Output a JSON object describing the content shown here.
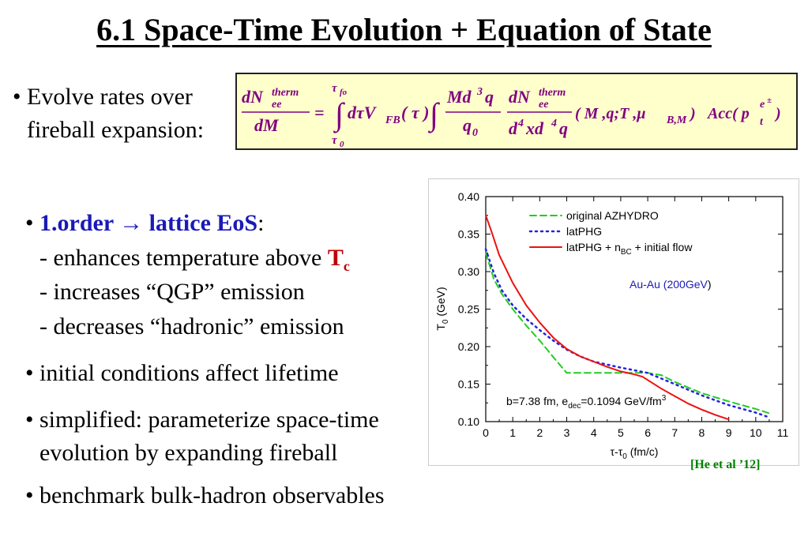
{
  "slide": {
    "title": "6.1 Space-Time Evolution + Equation of State",
    "intro_line1": "• Evolve rates over",
    "intro_line2": "fireball expansion:",
    "b1_prefix": "• ",
    "b1_bold": "1.order → lattice EoS",
    "b1_colon": ":",
    "b1_sub1": "- enhances temperature above ",
    "b1_tc": "T",
    "b1_tc_sub": "c",
    "b1_sub2": "- increases “QGP” emission",
    "b1_sub3": "- decreases “hadronic” emission",
    "b2": "• initial conditions affect lifetime",
    "b3_line1": "• simplified: parameterize space-time",
    "b3_line2": "evolution by expanding fireball",
    "b4": "• benchmark bulk-hadron observables",
    "reference": "[He et al ’12]"
  },
  "equation": {
    "lhs_num": "dN",
    "lhs_sup": "therm",
    "lhs_sub": "ee",
    "lhs_den": "dM",
    "equals": "=",
    "upper_limit": "τ",
    "upper_limit_sub": "fo",
    "lower_limit": "τ",
    "lower_limit_sub": "0",
    "integrand": "dτV",
    "integrand_sub": "FB",
    "integrand_arg": "( τ )",
    "frac2_num": "Md",
    "frac2_num_sup": "3",
    "frac2_num_end": "q",
    "frac2_den": "q",
    "frac2_den_sub": "0",
    "frac3_num": "dN",
    "frac3_sup": "therm",
    "frac3_sub": "ee",
    "frac3_den_a": "d",
    "frac3_den_a_sup": "4",
    "frac3_den_b": "xd",
    "frac3_den_b_sup": "4",
    "frac3_den_c": "q",
    "args_start": "( M ,q;T ,μ",
    "args_sub": "B,M",
    "args_end": " )",
    "acc": "Acc( p",
    "acc_sub": "t",
    "acc_sup": "e",
    "acc_sup_pm": "±",
    "acc_end": " )"
  },
  "chart_data": {
    "type": "line",
    "xlabel": "τ-τ",
    "xlabel_sub": "0",
    "xlabel_unit": " (fm/c)",
    "ylabel": "T",
    "ylabel_sub": "0",
    "ylabel_unit": " (GeV)",
    "xlim": [
      0,
      11
    ],
    "ylim": [
      0.1,
      0.4
    ],
    "xticks": [
      "0",
      "1",
      "2",
      "3",
      "4",
      "5",
      "6",
      "7",
      "8",
      "9",
      "10",
      "11"
    ],
    "yticks": [
      "0.10",
      "0.15",
      "0.20",
      "0.25",
      "0.30",
      "0.35",
      "0.40"
    ],
    "annotation_system": "Au-Au (200GeV",
    "annotation_system_end": ")",
    "annotation_params": "b=7.38 fm, e",
    "annotation_params_sub": "dec",
    "annotation_params_mid": "=0.1094 GeV/fm",
    "annotation_params_sup": "3",
    "legend": "top-left",
    "series": [
      {
        "name": "original AZHYDRO",
        "color": "#22cc22",
        "style": "dashed",
        "x": [
          0,
          0.3,
          0.6,
          1.0,
          1.5,
          2.0,
          2.5,
          3.0,
          3.5,
          4.0,
          5.0,
          6.0,
          6.5,
          7.0,
          8.0,
          9.0,
          10.0,
          10.6
        ],
        "y": [
          0.325,
          0.29,
          0.27,
          0.25,
          0.228,
          0.208,
          0.186,
          0.165,
          0.165,
          0.165,
          0.165,
          0.165,
          0.162,
          0.153,
          0.138,
          0.127,
          0.117,
          0.11
        ]
      },
      {
        "name": "latPHG",
        "color": "#2222dd",
        "style": "dotted",
        "x": [
          0,
          0.3,
          0.6,
          1.0,
          1.5,
          2.0,
          2.5,
          3.0,
          3.5,
          4.0,
          5.0,
          6.0,
          7.0,
          8.0,
          9.0,
          10.0,
          10.4
        ],
        "y": [
          0.33,
          0.298,
          0.275,
          0.255,
          0.237,
          0.222,
          0.208,
          0.196,
          0.187,
          0.18,
          0.172,
          0.165,
          0.15,
          0.135,
          0.122,
          0.112,
          0.107
        ]
      },
      {
        "name": "latPHG + n",
        "name_sub": "BC",
        "name_end": " + initial flow",
        "color": "#ee1111",
        "style": "solid",
        "x": [
          0,
          0.2,
          0.5,
          1.0,
          1.5,
          2.0,
          2.5,
          3.0,
          3.5,
          4.0,
          4.5,
          5.0,
          5.5,
          5.8,
          6.5,
          7.0,
          7.5,
          8.0,
          8.5,
          9.0
        ],
        "y": [
          0.375,
          0.355,
          0.322,
          0.285,
          0.255,
          0.232,
          0.212,
          0.197,
          0.187,
          0.18,
          0.173,
          0.167,
          0.163,
          0.16,
          0.144,
          0.134,
          0.124,
          0.116,
          0.109,
          0.103
        ]
      }
    ]
  }
}
